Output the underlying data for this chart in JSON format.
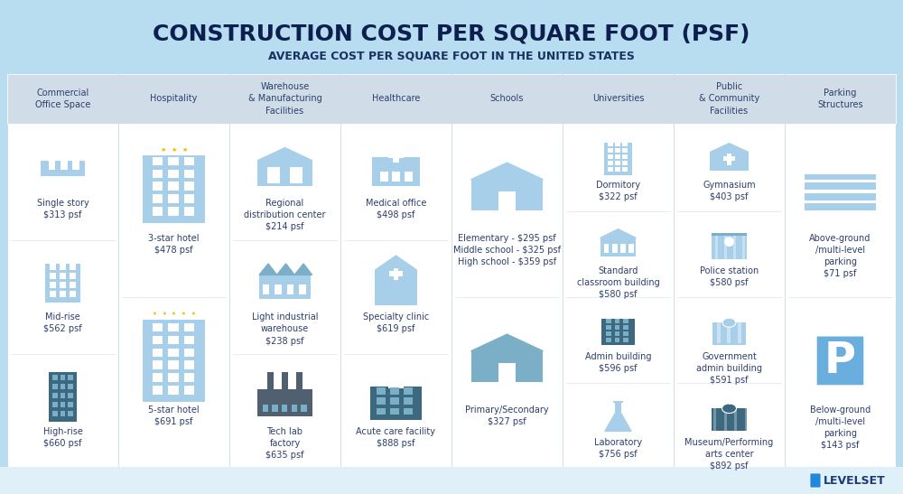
{
  "title": "CONSTRUCTION COST PER SQUARE FOOT (PSF)",
  "subtitle": "AVERAGE COST PER SQUARE FOOT IN THE UNITED STATES",
  "bg_color": "#B8DCF0",
  "table_bg": "#FFFFFF",
  "header_bg": "#D0DDE8",
  "title_color": "#0D1F4E",
  "subtitle_color": "#1A3060",
  "text_color": "#2C3E6B",
  "columns": [
    {
      "header": "Commercial\nOffice Space",
      "items": [
        {
          "label": "Single story\n$313 psf",
          "icon": "office_small"
        },
        {
          "label": "Mid-rise\n$562 psf",
          "icon": "office_mid"
        },
        {
          "label": "High-rise\n$660 psf",
          "icon": "office_high"
        }
      ]
    },
    {
      "header": "Hospitality",
      "items": [
        {
          "label": "3-star hotel\n$478 psf",
          "icon": "hotel_3star"
        },
        {
          "label": "5-star hotel\n$691 psf",
          "icon": "hotel_5star"
        }
      ]
    },
    {
      "header": "Warehouse\n& Manufacturing\nFacilities",
      "items": [
        {
          "label": "Regional\ndistribution center\n$214 psf",
          "icon": "warehouse"
        },
        {
          "label": "Light industrial\nwarehouse\n$238 psf",
          "icon": "industrial"
        },
        {
          "label": "Tech lab\nfactory\n$635 psf",
          "icon": "factory"
        }
      ]
    },
    {
      "header": "Healthcare",
      "items": [
        {
          "label": "Medical office\n$498 psf",
          "icon": "medical"
        },
        {
          "label": "Specialty clinic\n$619 psf",
          "icon": "clinic"
        },
        {
          "label": "Acute care facility\n$888 psf",
          "icon": "hospital"
        }
      ]
    },
    {
      "header": "Schools",
      "items": [
        {
          "label": "Elementary - $295 psf\nMiddle school - $325 psf\nHigh school - $359 psf",
          "icon": "school_elem"
        },
        {
          "label": "Primary/Secondary\n$327 psf",
          "icon": "school_primary"
        }
      ]
    },
    {
      "header": "Universities",
      "items": [
        {
          "label": "Dormitory\n$322 psf",
          "icon": "dorm"
        },
        {
          "label": "Standard\nclassroom building\n$580 psf",
          "icon": "classroom"
        },
        {
          "label": "Admin building\n$596 psf",
          "icon": "admin"
        },
        {
          "label": "Laboratory\n$756 psf",
          "icon": "lab"
        }
      ]
    },
    {
      "header": "Public\n& Community\nFacilities",
      "items": [
        {
          "label": "Gymnasium\n$403 psf",
          "icon": "gym"
        },
        {
          "label": "Police station\n$580 psf",
          "icon": "police"
        },
        {
          "label": "Government\nadmin building\n$591 psf",
          "icon": "gov"
        },
        {
          "label": "Museum/Performing\narts center\n$892 psf",
          "icon": "museum"
        }
      ]
    },
    {
      "header": "Parking\nStructures",
      "items": [
        {
          "label": "Above-ground\n/multi-level\nparking\n$71 psf",
          "icon": "parking_above"
        },
        {
          "label": "Below-ground\n/multi-level\nparking\n$143 psf",
          "icon": "parking_below"
        }
      ]
    }
  ],
  "footer_bg": "#DFF0F8",
  "logo_text": "LEVELSET",
  "logo_color": "#1A3A7A"
}
